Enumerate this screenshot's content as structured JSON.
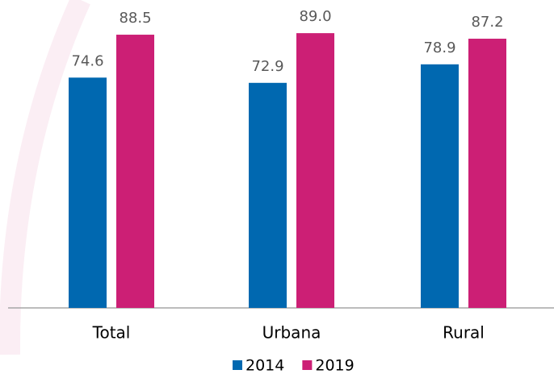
{
  "chart_data": {
    "type": "bar",
    "categories": [
      "Total",
      "Urbana",
      "Rural"
    ],
    "series": [
      {
        "name": "2014",
        "color": "#0068b0",
        "values": [
          74.6,
          72.9,
          78.9
        ],
        "value_labels": [
          "74.6",
          "72.9",
          "78.9"
        ]
      },
      {
        "name": "2019",
        "color": "#cc1f75",
        "values": [
          88.5,
          89.0,
          87.2
        ],
        "value_labels": [
          "88.5",
          "89.0",
          "87.2"
        ]
      }
    ],
    "legend": "bottom"
  }
}
